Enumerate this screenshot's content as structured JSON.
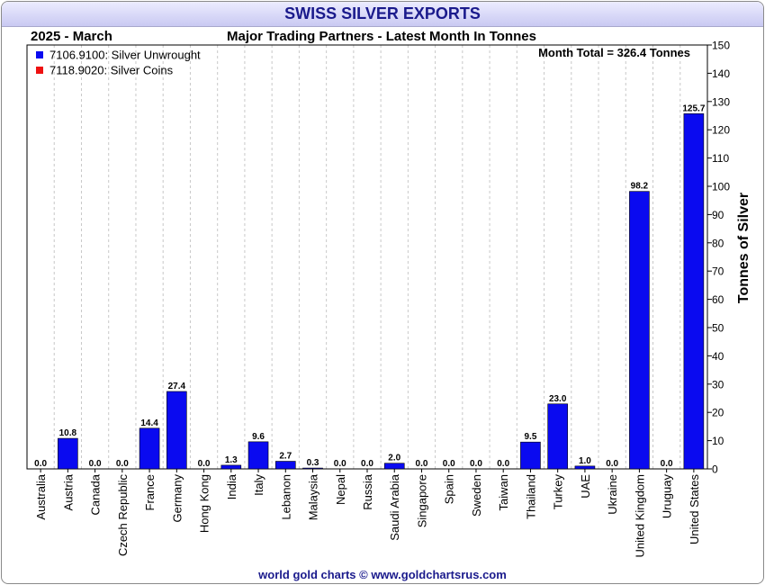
{
  "header": {
    "title": "SWISS SILVER EXPORTS",
    "period": "2025 - March",
    "subtitle": "Major Trading Partners - Latest Month In Tonnes"
  },
  "footer": {
    "credit": "world gold charts © www.goldchartsrus.com"
  },
  "colors": {
    "unwrought": "#0a0af0",
    "coins": "#ee1111",
    "title_text": "#1a1a8c"
  },
  "chart_data": {
    "type": "bar",
    "title": "SWISS SILVER EXPORTS",
    "subtitle": "Major Trading Partners - Latest Month In Tonnes",
    "ylabel": "Tonnes of Silver",
    "ylim": [
      0,
      150
    ],
    "yticks": [
      0,
      10,
      20,
      30,
      40,
      50,
      60,
      70,
      80,
      90,
      100,
      110,
      120,
      130,
      140,
      150
    ],
    "y_axis_side": "right",
    "annotation": "Month Total = 326.4 Tonnes",
    "legend_position": "top-left",
    "categories": [
      "Australia",
      "Austria",
      "Canada",
      "Czech Republic",
      "France",
      "Germany",
      "Hong Kong",
      "India",
      "Italy",
      "Lebanon",
      "Malaysia",
      "Nepal",
      "Russia",
      "Saudi Arabia",
      "Singapore",
      "Spain",
      "Sweden",
      "Taiwan",
      "Thailand",
      "Turkey",
      "UAE",
      "Ukraine",
      "United Kingdom",
      "Uruguay",
      "United States"
    ],
    "series": [
      {
        "name": "7106.9100: Silver Unwrought",
        "color": "#0a0af0",
        "values": [
          0.0,
          10.8,
          0.0,
          0.0,
          14.4,
          27.4,
          0.0,
          1.3,
          9.6,
          2.7,
          0.3,
          0.0,
          0.0,
          2.0,
          0.0,
          0.0,
          0.0,
          0.0,
          9.5,
          23.0,
          1.0,
          0.0,
          98.2,
          0.0,
          125.7
        ]
      },
      {
        "name": "7118.9020: Silver Coins",
        "color": "#ee1111",
        "values": [
          0.0,
          0.0,
          0.0,
          0.0,
          0.0,
          0.0,
          0.0,
          0.0,
          0.0,
          0.0,
          0.0,
          0.0,
          0.0,
          0.0,
          0.0,
          0.0,
          0.0,
          0.0,
          0.0,
          0.0,
          0.0,
          0.0,
          0.0,
          0.0,
          0.0
        ]
      }
    ],
    "data_labels": [
      "0.0",
      "10.8",
      "0.0",
      "0.0",
      "14.4",
      "27.4",
      "0.0",
      "1.3",
      "9.6",
      "2.7",
      "0.3",
      "0.0",
      "0.0",
      "2.0",
      "0.0",
      "0.0",
      "0.0",
      "0.0",
      "9.5",
      "23.0",
      "1.0",
      "0.0",
      "98.2",
      "0.0",
      "125.7"
    ],
    "grid": {
      "vertical": true,
      "horizontal": false
    }
  }
}
